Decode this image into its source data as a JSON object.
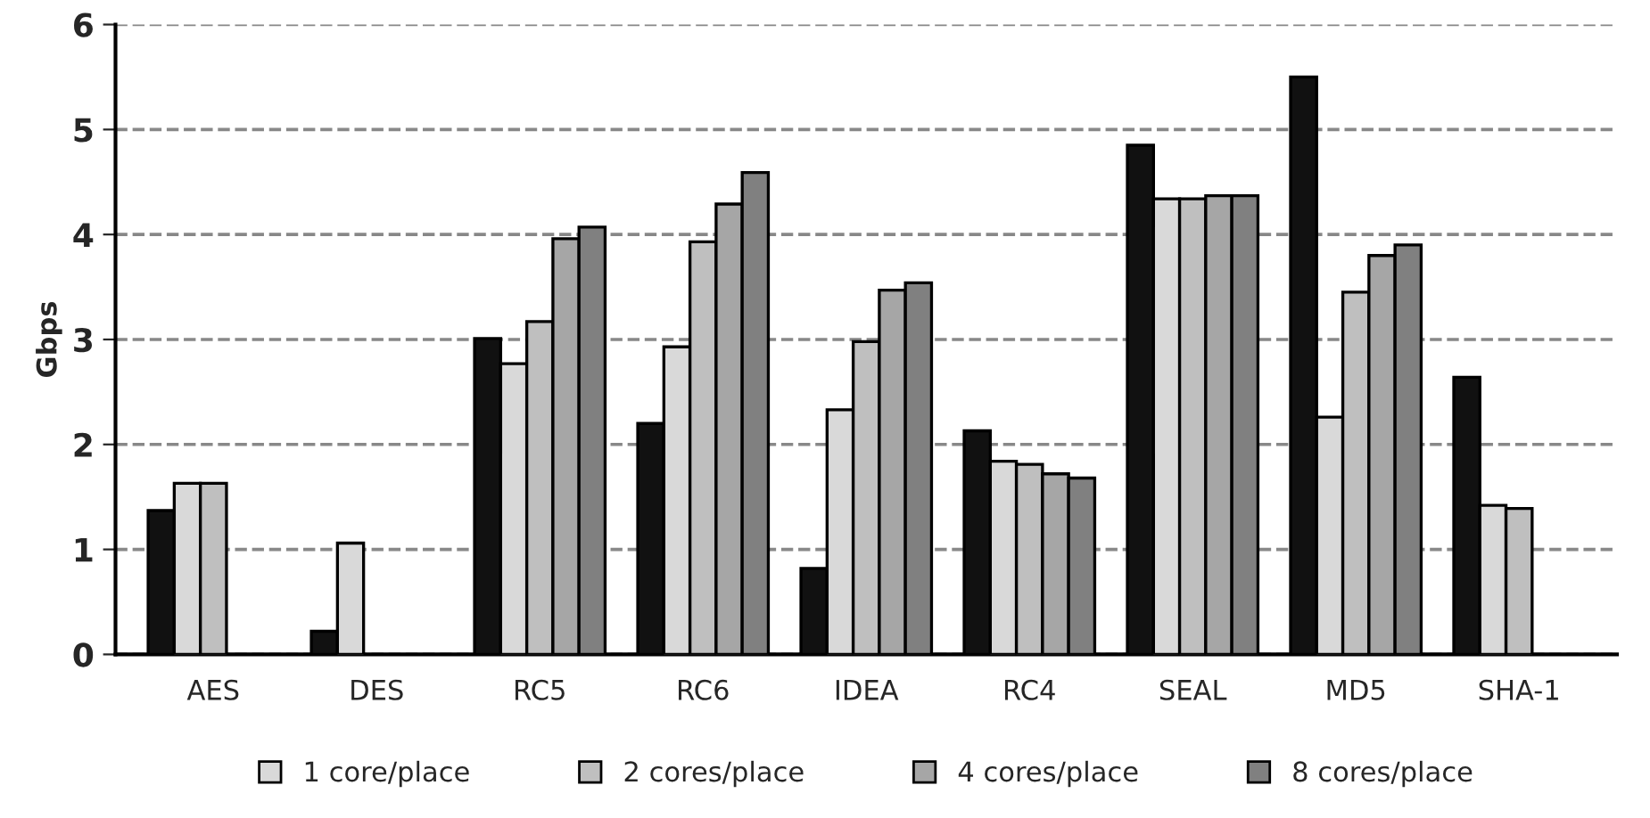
{
  "chart_data": {
    "type": "bar",
    "ylabel": "Gbps",
    "categories": [
      "AES",
      "DES",
      "RC5",
      "RC6",
      "IDEA",
      "RC4",
      "SEAL",
      "MD5",
      "SHA-1"
    ],
    "series": [
      {
        "color": "#111111",
        "values": [
          1.37,
          0.22,
          3.01,
          2.2,
          0.82,
          2.13,
          4.85,
          5.5,
          2.64
        ]
      },
      {
        "name": "1 core/place",
        "color": "#d9d9d9",
        "values": [
          1.63,
          1.06,
          2.77,
          2.93,
          2.33,
          1.84,
          4.34,
          2.26,
          1.42
        ]
      },
      {
        "name": "2 cores/place",
        "color": "#bfbfbf",
        "values": [
          1.63,
          null,
          3.17,
          3.93,
          2.98,
          1.81,
          4.34,
          3.45,
          1.39
        ]
      },
      {
        "name": "4 cores/place",
        "color": "#a6a6a6",
        "values": [
          null,
          null,
          3.96,
          4.29,
          3.47,
          1.72,
          4.37,
          3.8,
          null
        ]
      },
      {
        "name": "8 cores/place",
        "color": "#808080",
        "values": [
          null,
          null,
          4.07,
          4.59,
          3.54,
          1.68,
          4.37,
          3.9,
          null
        ]
      }
    ],
    "ylim": [
      0,
      6
    ],
    "yticks": [
      0,
      1,
      2,
      3,
      4,
      5,
      6
    ],
    "grid": "y",
    "legend": "bottom"
  }
}
